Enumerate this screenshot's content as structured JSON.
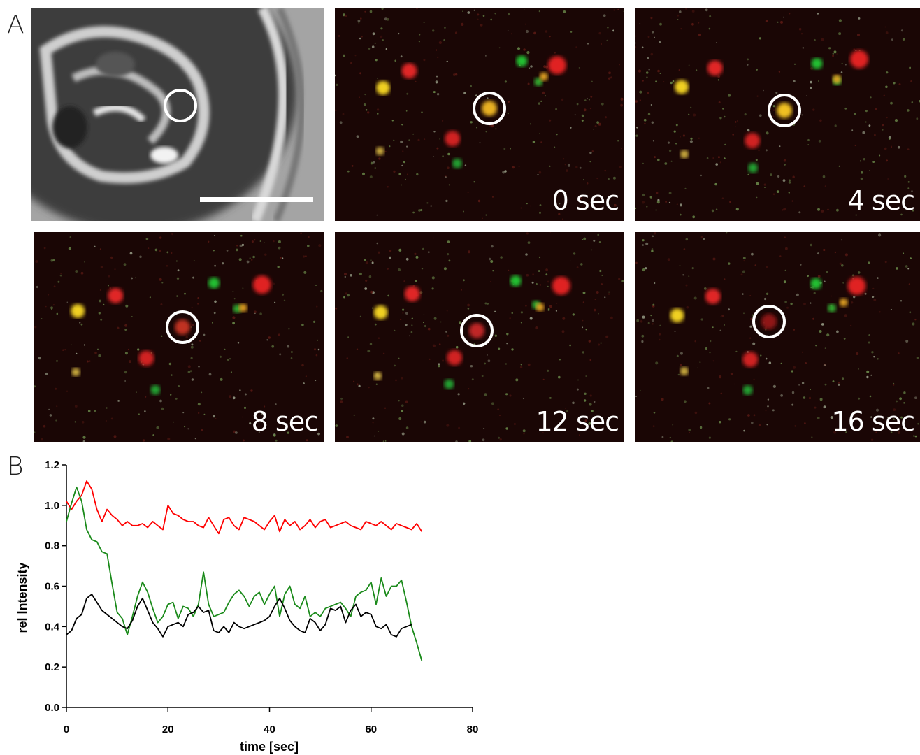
{
  "figure": {
    "panel_a_letter": "A",
    "panel_b_letter": "B",
    "panels": [
      {
        "name": "brightfield",
        "time_label": ""
      },
      {
        "name": "frame-0",
        "time_label": "0 sec",
        "spot_color": "#e8b020"
      },
      {
        "name": "frame-4",
        "time_label": "4 sec",
        "spot_color": "#f0c020"
      },
      {
        "name": "frame-8",
        "time_label": "8 sec",
        "spot_color": "#c03020"
      },
      {
        "name": "frame-12",
        "time_label": "12 sec",
        "spot_color": "#c02828"
      },
      {
        "name": "frame-16",
        "time_label": "16 sec",
        "spot_color": "#901818"
      }
    ]
  },
  "chart_data": {
    "type": "line",
    "xlabel": "time [sec]",
    "ylabel": "rel Intensity",
    "xlim": [
      0,
      80
    ],
    "ylim": [
      0,
      1.2
    ],
    "xticks": [
      "0",
      "20",
      "40",
      "60",
      "80"
    ],
    "yticks": [
      "0.0",
      "0.2",
      "0.4",
      "0.6",
      "0.8",
      "1.0",
      "1.2"
    ],
    "grid": false,
    "legend": "none",
    "series": [
      {
        "color": "#ff0000",
        "x": [
          0,
          1,
          2,
          3,
          4,
          5,
          6,
          7,
          8,
          9,
          10,
          11,
          12,
          13,
          14,
          15,
          16,
          17,
          18,
          19,
          20,
          21,
          22,
          23,
          24,
          25,
          26,
          27,
          28,
          29,
          30,
          31,
          32,
          33,
          34,
          35,
          36,
          37,
          38,
          39,
          40,
          41,
          42,
          43,
          44,
          45,
          46,
          47,
          48,
          49,
          50,
          51,
          52,
          53,
          54,
          55,
          56,
          57,
          58,
          59,
          60,
          61,
          62,
          63,
          64,
          65,
          66,
          67,
          68,
          69,
          70
        ],
        "y": [
          1.02,
          0.98,
          1.02,
          1.05,
          1.12,
          1.08,
          0.98,
          0.92,
          0.98,
          0.95,
          0.93,
          0.9,
          0.92,
          0.9,
          0.9,
          0.91,
          0.89,
          0.92,
          0.9,
          0.88,
          1.0,
          0.96,
          0.95,
          0.93,
          0.92,
          0.92,
          0.9,
          0.89,
          0.94,
          0.9,
          0.86,
          0.93,
          0.94,
          0.9,
          0.88,
          0.94,
          0.93,
          0.92,
          0.9,
          0.88,
          0.92,
          0.95,
          0.87,
          0.93,
          0.9,
          0.92,
          0.88,
          0.9,
          0.93,
          0.89,
          0.92,
          0.93,
          0.89,
          0.9,
          0.91,
          0.92,
          0.9,
          0.89,
          0.88,
          0.92,
          0.91,
          0.9,
          0.92,
          0.9,
          0.88,
          0.91,
          0.9,
          0.89,
          0.88,
          0.91,
          0.87
        ]
      },
      {
        "color": "#1a8a1a",
        "x": [
          0,
          1,
          2,
          3,
          4,
          5,
          6,
          7,
          8,
          9,
          10,
          11,
          12,
          13,
          14,
          15,
          16,
          17,
          18,
          19,
          20,
          21,
          22,
          23,
          24,
          25,
          26,
          27,
          28,
          29,
          30,
          31,
          32,
          33,
          34,
          35,
          36,
          37,
          38,
          39,
          40,
          41,
          42,
          43,
          44,
          45,
          46,
          47,
          48,
          49,
          50,
          51,
          52,
          53,
          54,
          55,
          56,
          57,
          58,
          59,
          60,
          61,
          62,
          63,
          64,
          65,
          66,
          67,
          68,
          69,
          70
        ],
        "y": [
          0.92,
          1.01,
          1.09,
          1.02,
          0.88,
          0.83,
          0.82,
          0.77,
          0.76,
          0.61,
          0.47,
          0.44,
          0.36,
          0.45,
          0.55,
          0.62,
          0.57,
          0.49,
          0.42,
          0.45,
          0.51,
          0.52,
          0.44,
          0.5,
          0.49,
          0.45,
          0.51,
          0.67,
          0.51,
          0.45,
          0.46,
          0.47,
          0.52,
          0.56,
          0.58,
          0.55,
          0.5,
          0.55,
          0.57,
          0.51,
          0.56,
          0.6,
          0.45,
          0.56,
          0.6,
          0.51,
          0.49,
          0.55,
          0.45,
          0.47,
          0.45,
          0.49,
          0.5,
          0.51,
          0.52,
          0.49,
          0.45,
          0.55,
          0.57,
          0.58,
          0.62,
          0.51,
          0.64,
          0.55,
          0.6,
          0.6,
          0.63,
          0.52,
          0.4,
          0.32,
          0.23
        ]
      },
      {
        "color": "#000000",
        "x": [
          0,
          1,
          2,
          3,
          4,
          5,
          6,
          7,
          8,
          9,
          10,
          11,
          12,
          13,
          14,
          15,
          16,
          17,
          18,
          19,
          20,
          21,
          22,
          23,
          24,
          25,
          26,
          27,
          28,
          29,
          30,
          31,
          32,
          33,
          34,
          35,
          36,
          37,
          38,
          39,
          40,
          41,
          42,
          43,
          44,
          45,
          46,
          47,
          48,
          49,
          50,
          51,
          52,
          53,
          54,
          55,
          56,
          57,
          58,
          59,
          60,
          61,
          62,
          63,
          64,
          65,
          66,
          67,
          68
        ],
        "y": [
          0.36,
          0.38,
          0.44,
          0.46,
          0.54,
          0.56,
          0.52,
          0.48,
          0.46,
          0.44,
          0.42,
          0.4,
          0.39,
          0.43,
          0.5,
          0.54,
          0.48,
          0.42,
          0.39,
          0.35,
          0.4,
          0.41,
          0.42,
          0.4,
          0.46,
          0.47,
          0.5,
          0.47,
          0.48,
          0.38,
          0.37,
          0.4,
          0.37,
          0.42,
          0.4,
          0.39,
          0.4,
          0.41,
          0.42,
          0.43,
          0.45,
          0.5,
          0.54,
          0.49,
          0.43,
          0.4,
          0.38,
          0.37,
          0.44,
          0.42,
          0.38,
          0.41,
          0.49,
          0.48,
          0.5,
          0.42,
          0.48,
          0.51,
          0.45,
          0.47,
          0.46,
          0.4,
          0.39,
          0.41,
          0.36,
          0.35,
          0.39,
          0.4,
          0.41
        ]
      }
    ]
  }
}
